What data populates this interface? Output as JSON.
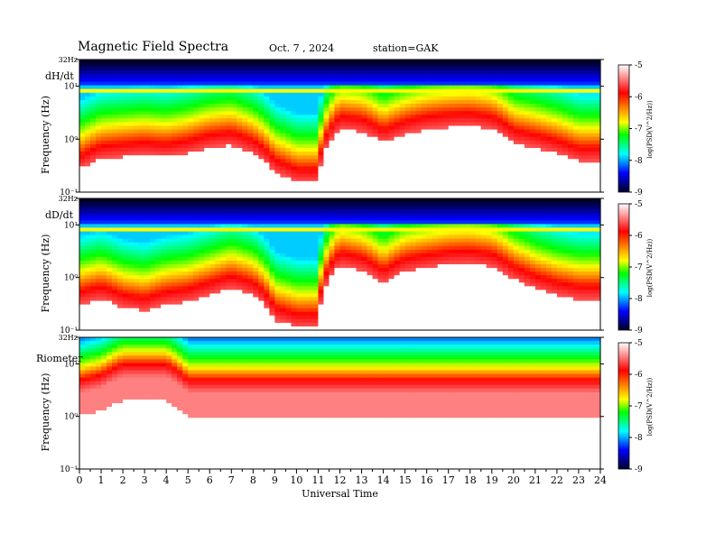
{
  "header": {
    "title": "Magnetic  Field  Spectra",
    "date": "Oct. 7  , 2024",
    "station": "station=GAK"
  },
  "colorbar": {
    "label": "log(PSD(V^2/Hz))",
    "ticks": [
      "-5",
      "-6",
      "-7",
      "-8",
      "-9"
    ],
    "stops": [
      "#ffffff",
      "#ff0000",
      "#ffff00",
      "#00ff00",
      "#00ffff",
      "#0000ff",
      "#00002a"
    ]
  },
  "xaxis": {
    "label": "Universal Time",
    "ticks": [
      "0",
      "1",
      "2",
      "3",
      "4",
      "5",
      "6",
      "7",
      "8",
      "9",
      "10",
      "11",
      "12",
      "13",
      "14",
      "15",
      "16",
      "17",
      "18",
      "19",
      "20",
      "21",
      "22",
      "23",
      "24"
    ]
  },
  "yaxis": {
    "label": "Frequency  (Hz)",
    "ticks": [
      "32Hz",
      "10¹",
      "10⁰",
      "10⁻¹"
    ]
  },
  "chart_data": [
    {
      "type": "heatmap",
      "panel_label": "dH/dt",
      "x": [
        0,
        1,
        2,
        3,
        4,
        5,
        6,
        7,
        8,
        9,
        10,
        11,
        12,
        13,
        14,
        15,
        16,
        17,
        18,
        19,
        20,
        21,
        22,
        23,
        24
      ],
      "ylim": [
        0.1,
        32
      ],
      "yscale": "log",
      "color_range": [
        -9,
        -5
      ],
      "red_edge_freq_hz": [
        0.35,
        0.55,
        0.6,
        0.65,
        0.6,
        0.7,
        0.9,
        1.0,
        0.7,
        0.3,
        0.2,
        0.2,
        2.0,
        1.8,
        1.1,
        1.6,
        2.0,
        2.2,
        2.3,
        2.0,
        1.1,
        0.9,
        0.7,
        0.5,
        0.5
      ]
    },
    {
      "type": "heatmap",
      "panel_label": "dD/dt",
      "x": [
        0,
        1,
        2,
        3,
        4,
        5,
        6,
        7,
        8,
        9,
        10,
        11,
        12,
        13,
        14,
        15,
        16,
        17,
        18,
        19,
        20,
        21,
        22,
        23,
        24
      ],
      "ylim": [
        0.1,
        32
      ],
      "yscale": "log",
      "color_range": [
        -9,
        -5
      ],
      "red_edge_freq_hz": [
        0.4,
        0.5,
        0.35,
        0.3,
        0.4,
        0.45,
        0.6,
        0.8,
        0.6,
        0.2,
        0.15,
        0.15,
        2.2,
        1.8,
        1.0,
        1.7,
        2.0,
        2.3,
        2.4,
        2.1,
        1.2,
        0.8,
        0.6,
        0.5,
        0.5
      ]
    },
    {
      "type": "heatmap",
      "panel_label": "Riometer",
      "x": [
        0,
        1,
        2,
        3,
        4,
        5,
        6,
        7,
        8,
        9,
        10,
        11,
        12,
        13,
        14,
        15,
        16,
        17,
        18,
        19,
        20,
        21,
        22,
        23,
        24
      ],
      "ylim": [
        0.1,
        32
      ],
      "yscale": "log",
      "color_range": [
        -9,
        -5
      ],
      "red_edge_freq_hz": [
        4,
        5,
        8,
        8,
        8,
        4,
        4,
        4,
        4,
        4,
        4,
        4,
        4,
        4,
        4,
        4,
        4,
        4,
        4,
        4,
        4,
        4,
        4,
        4,
        4
      ]
    }
  ]
}
